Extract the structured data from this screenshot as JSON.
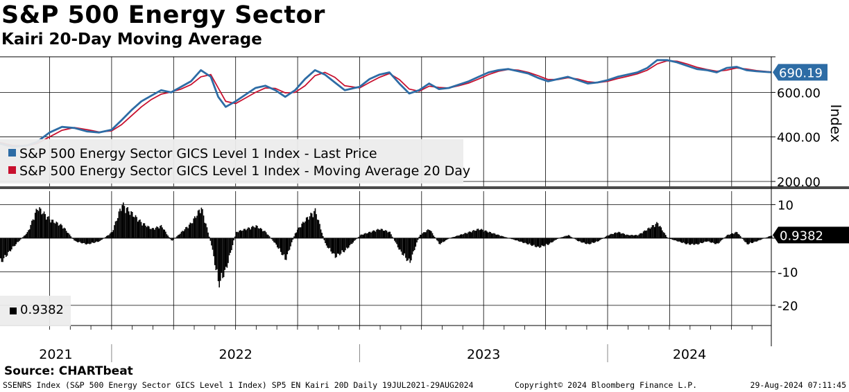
{
  "title": "S&P 500 Energy Sector",
  "subtitle": "Kairi 20-Day Moving Average",
  "source": "Source: CHARTbeat",
  "footer": {
    "left": "SSENRS Index (S&P 500 Energy Sector GICS Level 1 Index) SP5 EN Kairi 20D  Daily 19JUL2021-29AUG2024",
    "center": "Copyright© 2024 Bloomberg Finance L.P.",
    "right": "29-Aug-2024 07:11:45"
  },
  "colors": {
    "price": "#2d6ca5",
    "ma": "#c8102e",
    "kairi": "#000000"
  },
  "chart_data": [
    {
      "type": "line",
      "title": "S&P 500 Energy Sector",
      "ylabel": "Index",
      "ylim": [
        175,
        760
      ],
      "yticks": [
        200,
        400,
        600
      ],
      "ytick_labels": [
        "200.00",
        "400.00",
        "600.00"
      ],
      "x_years": [
        "2021",
        "2022",
        "2023",
        "2024"
      ],
      "x_range": [
        2021.55,
        2024.66
      ],
      "last_value_label": "690.19",
      "series": [
        {
          "name": "S&P 500 Energy Sector GICS Level 1 Index - Last Price",
          "x": [
            2021.55,
            2021.6,
            2021.66,
            2021.7,
            2021.75,
            2021.8,
            2021.85,
            2021.9,
            2021.95,
            2022.0,
            2022.04,
            2022.08,
            2022.12,
            2022.16,
            2022.2,
            2022.24,
            2022.28,
            2022.32,
            2022.36,
            2022.4,
            2022.43,
            2022.46,
            2022.5,
            2022.54,
            2022.58,
            2022.62,
            2022.66,
            2022.7,
            2022.74,
            2022.78,
            2022.82,
            2022.86,
            2022.9,
            2022.94,
            2023.0,
            2023.04,
            2023.08,
            2023.12,
            2023.16,
            2023.2,
            2023.24,
            2023.28,
            2023.32,
            2023.36,
            2023.4,
            2023.44,
            2023.48,
            2023.52,
            2023.56,
            2023.6,
            2023.64,
            2023.68,
            2023.72,
            2023.76,
            2023.8,
            2023.84,
            2023.88,
            2023.92,
            2023.96,
            2024.0,
            2024.04,
            2024.08,
            2024.12,
            2024.16,
            2024.2,
            2024.24,
            2024.28,
            2024.32,
            2024.36,
            2024.4,
            2024.44,
            2024.48,
            2024.52,
            2024.56,
            2024.6,
            2024.66
          ],
          "values": [
            370,
            355,
            362,
            378,
            420,
            445,
            440,
            425,
            420,
            432,
            475,
            520,
            560,
            585,
            610,
            600,
            625,
            650,
            700,
            670,
            580,
            535,
            560,
            590,
            620,
            630,
            610,
            580,
            610,
            660,
            700,
            680,
            645,
            610,
            625,
            660,
            680,
            690,
            640,
            595,
            610,
            640,
            615,
            620,
            635,
            650,
            670,
            690,
            700,
            705,
            695,
            685,
            665,
            650,
            660,
            670,
            655,
            640,
            645,
            655,
            670,
            680,
            690,
            710,
            745,
            745,
            735,
            720,
            705,
            700,
            690,
            710,
            715,
            700,
            695,
            690.19
          ]
        },
        {
          "name": "S&P 500 Energy Sector GICS Level 1 Index - Moving Average 20 Day",
          "x": [
            2021.55,
            2021.6,
            2021.66,
            2021.7,
            2021.75,
            2021.8,
            2021.85,
            2021.9,
            2021.95,
            2022.0,
            2022.04,
            2022.08,
            2022.12,
            2022.16,
            2022.2,
            2022.24,
            2022.28,
            2022.32,
            2022.36,
            2022.4,
            2022.43,
            2022.46,
            2022.5,
            2022.54,
            2022.58,
            2022.62,
            2022.66,
            2022.7,
            2022.74,
            2022.78,
            2022.82,
            2022.86,
            2022.9,
            2022.94,
            2023.0,
            2023.04,
            2023.08,
            2023.12,
            2023.16,
            2023.2,
            2023.24,
            2023.28,
            2023.32,
            2023.36,
            2023.4,
            2023.44,
            2023.48,
            2023.52,
            2023.56,
            2023.6,
            2023.64,
            2023.68,
            2023.72,
            2023.76,
            2023.8,
            2023.84,
            2023.88,
            2023.92,
            2023.96,
            2024.0,
            2024.04,
            2024.08,
            2024.12,
            2024.16,
            2024.2,
            2024.24,
            2024.28,
            2024.32,
            2024.36,
            2024.4,
            2024.44,
            2024.48,
            2024.52,
            2024.56,
            2024.6,
            2024.66
          ],
          "values": [
            375,
            362,
            360,
            370,
            400,
            430,
            442,
            433,
            422,
            427,
            455,
            495,
            535,
            568,
            592,
            602,
            615,
            635,
            670,
            680,
            620,
            560,
            550,
            575,
            600,
            620,
            618,
            598,
            600,
            630,
            675,
            690,
            668,
            630,
            620,
            645,
            668,
            685,
            658,
            615,
            605,
            628,
            622,
            620,
            630,
            642,
            660,
            680,
            695,
            703,
            700,
            690,
            675,
            658,
            658,
            666,
            660,
            648,
            644,
            650,
            662,
            672,
            683,
            700,
            728,
            742,
            740,
            728,
            713,
            703,
            695,
            700,
            710,
            705,
            698,
            692
          ]
        }
      ]
    },
    {
      "type": "bar",
      "title": "Kairi 20-Day Moving Average",
      "ylim": [
        -26,
        14
      ],
      "yticks": [
        10,
        0,
        -10,
        -20
      ],
      "ytick_labels": [
        "10",
        "",
        "-10",
        "-20"
      ],
      "last_value_label": "0.9382",
      "legend_value": "0.9382",
      "series": [
        {
          "name": "Kairi 20D",
          "x": [
            2021.55,
            2021.6,
            2021.66,
            2021.7,
            2021.75,
            2021.8,
            2021.85,
            2021.9,
            2021.95,
            2022.0,
            2022.04,
            2022.08,
            2022.12,
            2022.16,
            2022.2,
            2022.24,
            2022.28,
            2022.32,
            2022.36,
            2022.4,
            2022.43,
            2022.46,
            2022.5,
            2022.54,
            2022.58,
            2022.62,
            2022.66,
            2022.7,
            2022.74,
            2022.78,
            2022.82,
            2022.86,
            2022.9,
            2022.94,
            2023.0,
            2023.04,
            2023.08,
            2023.12,
            2023.16,
            2023.2,
            2023.24,
            2023.28,
            2023.32,
            2023.36,
            2023.4,
            2023.44,
            2023.48,
            2023.52,
            2023.56,
            2023.6,
            2023.64,
            2023.68,
            2023.72,
            2023.76,
            2023.8,
            2023.84,
            2023.88,
            2023.92,
            2023.96,
            2024.0,
            2024.04,
            2024.08,
            2024.12,
            2024.16,
            2024.2,
            2024.24,
            2024.28,
            2024.32,
            2024.36,
            2024.4,
            2024.44,
            2024.48,
            2024.52,
            2024.56,
            2024.6,
            2024.66
          ],
          "values": [
            -8,
            -3,
            2,
            10,
            6,
            4,
            -1,
            -2,
            -1,
            2,
            11,
            8,
            5,
            3,
            4,
            -1,
            2,
            5,
            10,
            -2,
            -15,
            -10,
            2,
            3,
            4,
            2,
            -2,
            -7,
            2,
            6,
            9,
            -2,
            -6,
            -4,
            1,
            2,
            3,
            2,
            -4,
            -8,
            1,
            3,
            -2,
            0,
            1,
            2,
            3,
            2,
            1,
            0,
            -1,
            -2,
            -3,
            -2,
            0,
            1,
            -1,
            -2,
            -1,
            1,
            2,
            1,
            1,
            3,
            5,
            0,
            -1,
            -2,
            -2,
            -1,
            -2,
            1,
            2,
            -2,
            -1,
            0.94
          ]
        }
      ]
    }
  ]
}
